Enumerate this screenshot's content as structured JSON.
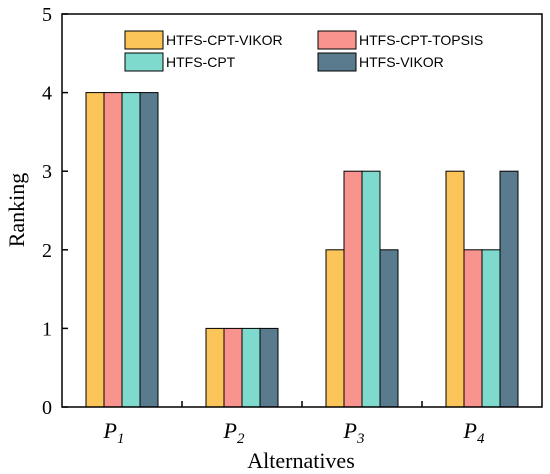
{
  "chart_data": {
    "type": "bar",
    "categories": [
      {
        "base": "P",
        "sub": "1"
      },
      {
        "base": "P",
        "sub": "2"
      },
      {
        "base": "P",
        "sub": "3"
      },
      {
        "base": "P",
        "sub": "4"
      }
    ],
    "series": [
      {
        "name": "HTFS-CPT-VIKOR",
        "color": "#FBC55A",
        "values": [
          4,
          1,
          2,
          3
        ]
      },
      {
        "name": "HTFS-CPT-TOPSIS",
        "color": "#F8938E",
        "values": [
          4,
          1,
          3,
          2
        ]
      },
      {
        "name": "HTFS-CPT",
        "color": "#7FDACE",
        "values": [
          4,
          1,
          3,
          2
        ]
      },
      {
        "name": "HTFS-VIKOR",
        "color": "#5A7A8D",
        "values": [
          4,
          1,
          2,
          3
        ]
      }
    ],
    "xlabel": "Alternatives",
    "ylabel": "Ranking",
    "ylim": [
      0,
      5
    ],
    "yticks": [
      0,
      1,
      2,
      3,
      4,
      5
    ],
    "grid": false,
    "legend": "top-right, two columns"
  }
}
